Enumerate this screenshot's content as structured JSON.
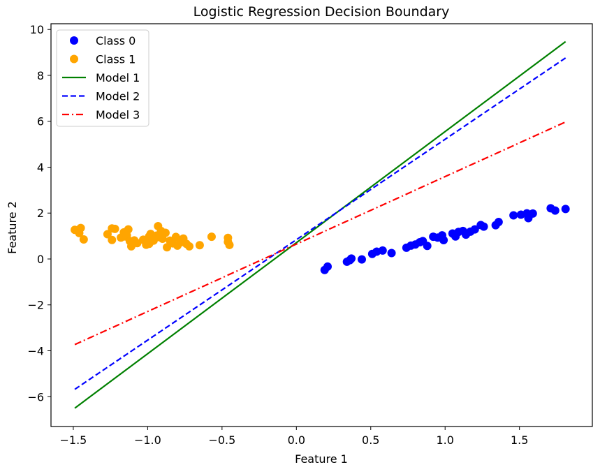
{
  "chart_data": {
    "type": "scatter",
    "title": "Logistic Regression Decision Boundary",
    "xlabel": "Feature 1",
    "ylabel": "Feature 2",
    "xlim": [
      -1.65,
      1.99
    ],
    "ylim": [
      -7.3,
      10.25
    ],
    "xticks": [
      -1.5,
      -1.0,
      -0.5,
      0.0,
      0.5,
      1.0,
      1.5
    ],
    "xtick_labels": [
      "−1.5",
      "−1.0",
      "−0.5",
      "0.0",
      "0.5",
      "1.0",
      "1.5"
    ],
    "yticks": [
      -6,
      -4,
      -2,
      0,
      2,
      4,
      6,
      8,
      10
    ],
    "ytick_labels": [
      "−6",
      "−4",
      "−2",
      "0",
      "2",
      "4",
      "6",
      "8",
      "10"
    ],
    "grid": false,
    "legend_position": "top-left",
    "scatter_series": [
      {
        "name": "Class 0",
        "color": "#0000ff",
        "points": [
          [
            0.19,
            -0.48
          ],
          [
            0.21,
            -0.33
          ],
          [
            0.34,
            -0.12
          ],
          [
            0.37,
            0.02
          ],
          [
            0.36,
            -0.05
          ],
          [
            0.44,
            -0.02
          ],
          [
            0.51,
            0.22
          ],
          [
            0.54,
            0.32
          ],
          [
            0.58,
            0.37
          ],
          [
            0.64,
            0.26
          ],
          [
            0.74,
            0.49
          ],
          [
            0.77,
            0.58
          ],
          [
            0.8,
            0.63
          ],
          [
            0.83,
            0.73
          ],
          [
            0.85,
            0.78
          ],
          [
            0.88,
            0.57
          ],
          [
            0.92,
            0.97
          ],
          [
            0.95,
            0.93
          ],
          [
            0.98,
            1.03
          ],
          [
            0.99,
            0.82
          ],
          [
            1.05,
            1.11
          ],
          [
            1.07,
            0.98
          ],
          [
            1.09,
            1.18
          ],
          [
            1.12,
            1.22
          ],
          [
            1.14,
            1.06
          ],
          [
            1.17,
            1.19
          ],
          [
            1.2,
            1.29
          ],
          [
            1.24,
            1.48
          ],
          [
            1.26,
            1.41
          ],
          [
            1.34,
            1.47
          ],
          [
            1.36,
            1.61
          ],
          [
            1.46,
            1.9
          ],
          [
            1.51,
            1.93
          ],
          [
            1.55,
            1.99
          ],
          [
            1.56,
            1.78
          ],
          [
            1.59,
            1.98
          ],
          [
            1.71,
            2.21
          ],
          [
            1.74,
            2.11
          ],
          [
            1.81,
            2.18
          ]
        ]
      },
      {
        "name": "Class 1",
        "color": "#ffa500",
        "points": [
          [
            -1.49,
            1.27
          ],
          [
            -1.45,
            1.35
          ],
          [
            -1.46,
            1.13
          ],
          [
            -1.43,
            0.85
          ],
          [
            -1.27,
            1.08
          ],
          [
            -1.24,
            1.33
          ],
          [
            -1.22,
            1.31
          ],
          [
            -1.24,
            0.83
          ],
          [
            -1.18,
            0.93
          ],
          [
            -1.16,
            1.16
          ],
          [
            -1.15,
            0.98
          ],
          [
            -1.13,
            1.29
          ],
          [
            -1.14,
            1.03
          ],
          [
            -1.12,
            0.78
          ],
          [
            -1.11,
            0.55
          ],
          [
            -1.09,
            0.81
          ],
          [
            -1.07,
            0.69
          ],
          [
            -1.03,
            0.84
          ],
          [
            -1.01,
            0.62
          ],
          [
            -0.99,
            0.98
          ],
          [
            -0.98,
            1.09
          ],
          [
            -0.99,
            0.66
          ],
          [
            -0.96,
            0.8
          ],
          [
            -0.94,
            1.02
          ],
          [
            -0.93,
            1.43
          ],
          [
            -0.92,
            0.95
          ],
          [
            -0.91,
            1.22
          ],
          [
            -0.9,
            0.88
          ],
          [
            -0.88,
            1.14
          ],
          [
            -0.87,
            0.51
          ],
          [
            -0.85,
            0.8
          ],
          [
            -0.83,
            0.68
          ],
          [
            -0.81,
            0.96
          ],
          [
            -0.8,
            0.58
          ],
          [
            -0.78,
            0.72
          ],
          [
            -0.76,
            0.89
          ],
          [
            -0.74,
            0.66
          ],
          [
            -0.72,
            0.55
          ],
          [
            -0.65,
            0.6
          ],
          [
            -0.57,
            0.97
          ],
          [
            -0.46,
            0.92
          ],
          [
            -0.46,
            0.74
          ],
          [
            -0.45,
            0.61
          ]
        ]
      }
    ],
    "line_series": [
      {
        "name": "Model 1",
        "color": "#008000",
        "dash": "solid",
        "x": [
          -1.49,
          1.81
        ],
        "y": [
          -6.5,
          9.47
        ]
      },
      {
        "name": "Model 2",
        "color": "#0000ff",
        "dash": "dashed",
        "x": [
          -1.49,
          1.81
        ],
        "y": [
          -5.68,
          8.76
        ]
      },
      {
        "name": "Model 3",
        "color": "#ff0000",
        "dash": "dashdot",
        "x": [
          -1.49,
          1.81
        ],
        "y": [
          -3.73,
          5.97
        ]
      }
    ]
  }
}
